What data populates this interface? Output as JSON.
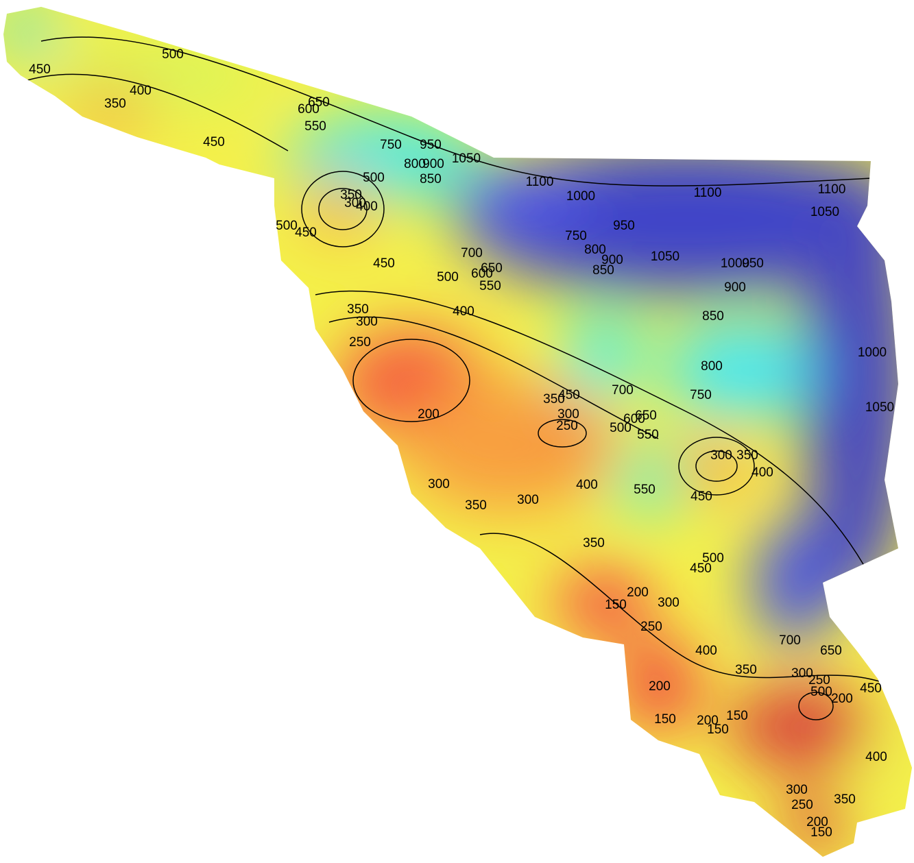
{
  "map": {
    "contour_labels": [
      500,
      450,
      400,
      350,
      450,
      650,
      600,
      550,
      750,
      800,
      850,
      900,
      950,
      1050,
      1100,
      1000,
      1100,
      1100,
      1050,
      500,
      350,
      300,
      400,
      500,
      450,
      450,
      750,
      800,
      850,
      900,
      950,
      1050,
      700,
      650,
      600,
      550,
      500,
      400,
      350,
      300,
      250,
      1000,
      950,
      900,
      850,
      800,
      750,
      700,
      650,
      600,
      550,
      500,
      450,
      350,
      300,
      250,
      200,
      1000,
      1050,
      300,
      350,
      400,
      450,
      550,
      300,
      350,
      300,
      400,
      350,
      500,
      450,
      200,
      150,
      300,
      250,
      400,
      350,
      700,
      650,
      300,
      250,
      500,
      200,
      450,
      200,
      150,
      200,
      150,
      150,
      400,
      300,
      250,
      350,
      200,
      150
    ]
  }
}
